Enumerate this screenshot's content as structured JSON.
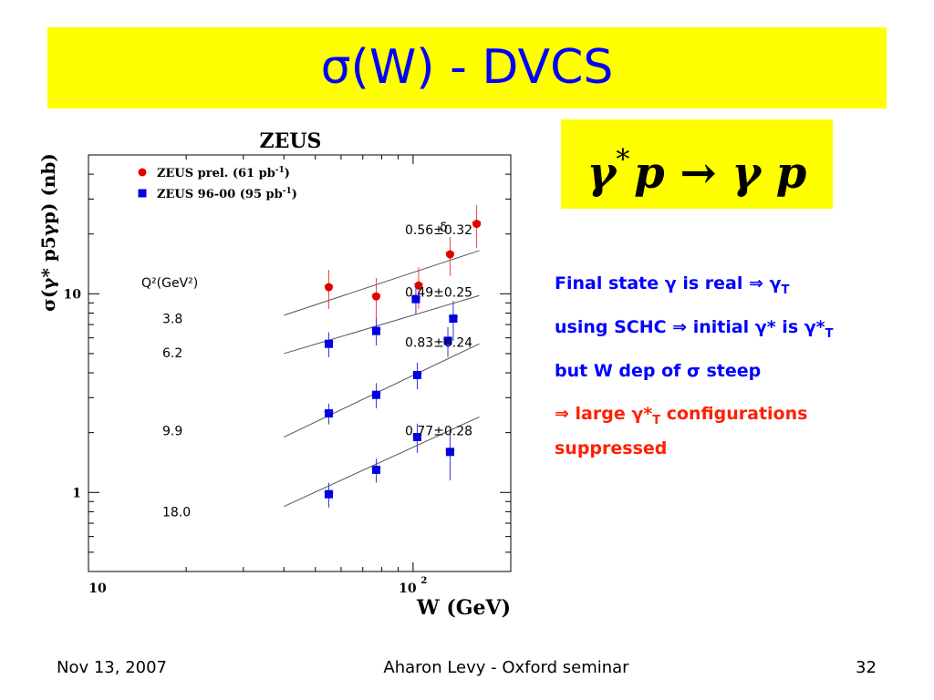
{
  "slide": {
    "title": "σ(W) - DVCS",
    "reaction": {
      "base": "γ",
      "star": "*",
      "rest": "p → γ p"
    },
    "notes": [
      {
        "text": "Final state γ is real ⇒ γ",
        "sub": "T",
        "after": "",
        "color": "blue"
      },
      {
        "text": "using SCHC ⇒ initial γ* is γ*",
        "sub": "T",
        "after": "",
        "color": "blue"
      },
      {
        "text": "but W dep of σ steep",
        "sub": "",
        "after": "",
        "color": "blue"
      },
      {
        "text": "⇒ large γ*",
        "sub": "T",
        "after": " configurations suppressed",
        "color": "red"
      }
    ],
    "footer": {
      "date": "Nov 13, 2007",
      "center": "Aharon Levy - Oxford seminar",
      "page": "32"
    }
  },
  "chart_data": {
    "type": "scatter",
    "title": "ZEUS",
    "xlabel": "W (GeV)",
    "ylabel": "σ(γ* p5γp) (nb)",
    "xscale": "log",
    "yscale": "log",
    "xlim": [
      10,
      200
    ],
    "ylim": [
      0.4,
      50
    ],
    "x_tick_labels": [
      {
        "value": 10,
        "label": "10"
      },
      {
        "value": 100,
        "label": "10",
        "sup": "2"
      }
    ],
    "y_tick_labels": [
      {
        "value": 1,
        "label": "1"
      },
      {
        "value": 10,
        "label": "10"
      }
    ],
    "legend": {
      "placement": "top-left",
      "entries": [
        {
          "label": "ZEUS prel. (61 pb",
          "sup": "-1",
          "after": ")",
          "marker": "circle",
          "color": "#e00000"
        },
        {
          "label": "ZEUS 96-00 (95 pb",
          "sup": "-1",
          "after": ")",
          "marker": "square",
          "color": "#0000e0"
        }
      ]
    },
    "q2_header": "Q²(GeV²)",
    "delta_header": "δ",
    "series": [
      {
        "q2": "3.8",
        "delta": "0.56±0.32",
        "label_y": 7.5,
        "delta_y": 21,
        "fit": {
          "x": [
            40,
            160
          ],
          "y": [
            7.8,
            16.5
          ]
        },
        "points": [
          {
            "x": 55,
            "y": 10.8,
            "err": 2.4,
            "marker": "circle",
            "color": "#e00000"
          },
          {
            "x": 77,
            "y": 9.7,
            "err": 2.3,
            "marker": "circle",
            "color": "#e00000"
          },
          {
            "x": 104,
            "y": 11.0,
            "err": 2.6,
            "marker": "circle",
            "color": "#e00000"
          },
          {
            "x": 130,
            "y": 15.8,
            "err": 3.5,
            "marker": "circle",
            "color": "#e00000"
          },
          {
            "x": 157,
            "y": 22.5,
            "err": 5.5,
            "marker": "circle",
            "color": "#e00000"
          }
        ]
      },
      {
        "q2": "6.2",
        "delta": "0.49±0.25",
        "label_y": 5.05,
        "delta_y": 10.2,
        "fit": {
          "x": [
            40,
            160
          ],
          "y": [
            5.0,
            9.8
          ]
        },
        "points": [
          {
            "x": 55,
            "y": 5.6,
            "err": 0.8,
            "marker": "square",
            "color": "#0000e0"
          },
          {
            "x": 77,
            "y": 6.5,
            "err": 1.0,
            "marker": "square",
            "color": "#0000e0"
          },
          {
            "x": 102,
            "y": 9.4,
            "err": 1.5,
            "marker": "square",
            "color": "#0000e0"
          },
          {
            "x": 128,
            "y": 5.8,
            "err": 1.0,
            "marker": "square",
            "color": "#0000e0"
          },
          {
            "x": 133,
            "y": 7.5,
            "err": 1.7,
            "marker": "square",
            "color": "#0000e0"
          }
        ]
      },
      {
        "q2": "9.9",
        "delta": "0.83±0.24",
        "label_y": 2.05,
        "delta_y": 5.7,
        "fit": {
          "x": [
            40,
            160
          ],
          "y": [
            1.9,
            5.6
          ]
        },
        "points": [
          {
            "x": 55,
            "y": 2.5,
            "err": 0.3,
            "marker": "square",
            "color": "#0000e0"
          },
          {
            "x": 77,
            "y": 3.1,
            "err": 0.45,
            "marker": "square",
            "color": "#0000e0"
          },
          {
            "x": 103,
            "y": 3.9,
            "err": 0.6,
            "marker": "square",
            "color": "#0000e0"
          }
        ]
      },
      {
        "q2": "18.0",
        "delta": "0.77±0.28",
        "label_y": 0.8,
        "delta_y": 2.05,
        "fit": {
          "x": [
            40,
            160
          ],
          "y": [
            0.85,
            2.4
          ]
        },
        "points": [
          {
            "x": 55,
            "y": 0.98,
            "err": 0.14,
            "marker": "square",
            "color": "#0000e0"
          },
          {
            "x": 77,
            "y": 1.3,
            "err": 0.18,
            "marker": "square",
            "color": "#0000e0"
          },
          {
            "x": 103,
            "y": 1.9,
            "err": 0.32,
            "marker": "square",
            "color": "#0000e0"
          },
          {
            "x": 130,
            "y": 1.6,
            "err": 0.45,
            "marker": "square",
            "color": "#0000e0"
          }
        ]
      }
    ]
  }
}
